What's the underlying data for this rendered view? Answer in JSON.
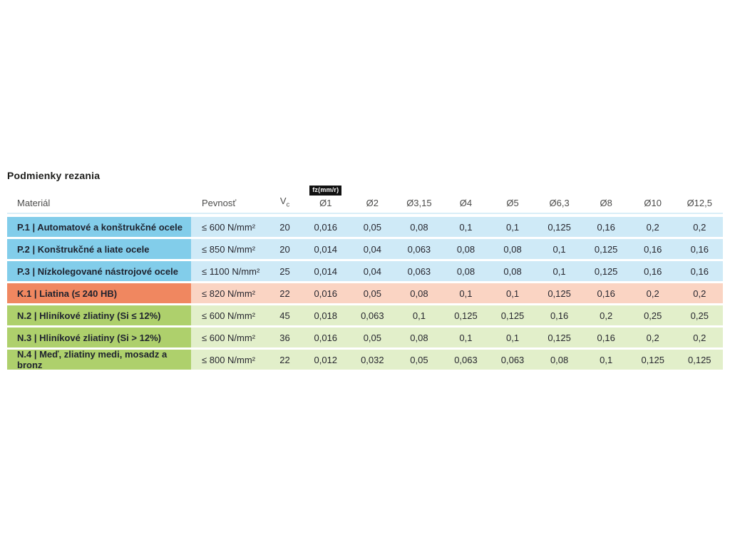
{
  "page": {
    "title": "Podmienky rezania"
  },
  "colors": {
    "steel_cell": "#82cdea",
    "steel_row": "#cfeaf7",
    "cast_iron_cell": "#f08760",
    "cast_iron_row": "#fad4c3",
    "nonferrous_cell": "#aed06c",
    "nonferrous_row": "#e2efca",
    "badge_bg": "#111111",
    "badge_text": "#ffffff"
  },
  "table": {
    "unit_badge": "fz(mm/r)",
    "columns": {
      "material": "Materiál",
      "pevnost": "Pevnosť",
      "vc_base": "V",
      "vc_sub": "c",
      "diameters": [
        "Ø1",
        "Ø2",
        "Ø3,15",
        "Ø4",
        "Ø5",
        "Ø6,3",
        "Ø8",
        "Ø10",
        "Ø12,5"
      ]
    },
    "rows": [
      {
        "group": "P",
        "material": "P.1 | Automatové a konštrukčné ocele",
        "pevnost": "≤ 600 N/mm²",
        "vc": "20",
        "values": [
          "0,016",
          "0,05",
          "0,08",
          "0,1",
          "0,1",
          "0,125",
          "0,16",
          "0,2",
          "0,2"
        ]
      },
      {
        "group": "P",
        "material": "P.2 | Konštrukčné a liate ocele",
        "pevnost": "≤ 850 N/mm²",
        "vc": "20",
        "values": [
          "0,014",
          "0,04",
          "0,063",
          "0,08",
          "0,08",
          "0,1",
          "0,125",
          "0,16",
          "0,16"
        ]
      },
      {
        "group": "P",
        "material": "P.3 | Nízkolegované nástrojové ocele",
        "pevnost": "≤ 1100 N/mm²",
        "vc": "25",
        "values": [
          "0,014",
          "0,04",
          "0,063",
          "0,08",
          "0,08",
          "0,1",
          "0,125",
          "0,16",
          "0,16"
        ]
      },
      {
        "group": "K",
        "material": "K.1 | Liatina (≤ 240 HB)",
        "pevnost": "≤ 820 N/mm²",
        "vc": "22",
        "values": [
          "0,016",
          "0,05",
          "0,08",
          "0,1",
          "0,1",
          "0,125",
          "0,16",
          "0,2",
          "0,2"
        ]
      },
      {
        "group": "N",
        "material": "N.2 | Hliníkové zliatiny (Si ≤ 12%)",
        "pevnost": "≤ 600 N/mm²",
        "vc": "45",
        "values": [
          "0,018",
          "0,063",
          "0,1",
          "0,125",
          "0,125",
          "0,16",
          "0,2",
          "0,25",
          "0,25"
        ]
      },
      {
        "group": "N",
        "material": "N.3 | Hliníkové zliatiny (Si > 12%)",
        "pevnost": "≤ 600 N/mm²",
        "vc": "36",
        "values": [
          "0,016",
          "0,05",
          "0,08",
          "0,1",
          "0,1",
          "0,125",
          "0,16",
          "0,2",
          "0,2"
        ]
      },
      {
        "group": "N",
        "material": "N.4 | Meď, zliatiny medi, mosadz a bronz",
        "pevnost": "≤ 800 N/mm²",
        "vc": "22",
        "values": [
          "0,012",
          "0,032",
          "0,05",
          "0,063",
          "0,063",
          "0,08",
          "0,1",
          "0,125",
          "0,125"
        ]
      }
    ]
  }
}
